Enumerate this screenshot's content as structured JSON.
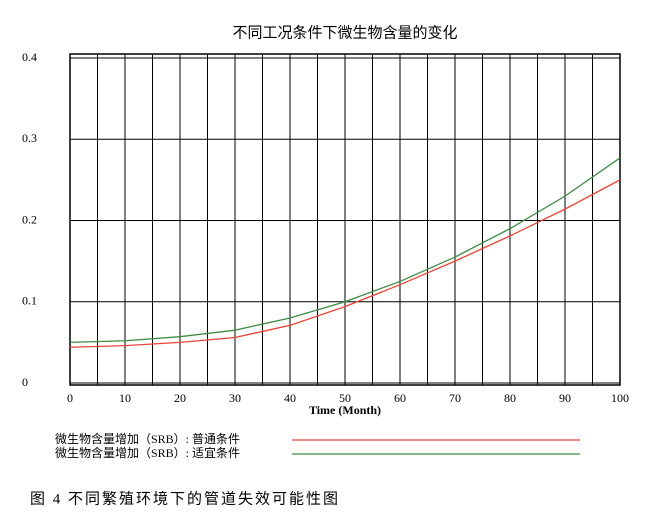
{
  "chart_data": {
    "type": "line",
    "title": "不同工况条件下微生物含量的变化",
    "x_label": "Time (Month)",
    "x": [
      0,
      10,
      20,
      30,
      40,
      50,
      60,
      70,
      80,
      90,
      100
    ],
    "series": [
      {
        "name": "微生物含量增加（SRB）: 普通条件",
        "color": "#e8463a",
        "values": [
          0.044,
          0.046,
          0.05,
          0.056,
          0.071,
          0.094,
          0.121,
          0.15,
          0.181,
          0.214,
          0.25
        ]
      },
      {
        "name": "微生物含量增加（SRB）: 适宜条件",
        "color": "#3f8a45",
        "values": [
          0.05,
          0.052,
          0.057,
          0.065,
          0.08,
          0.1,
          0.125,
          0.155,
          0.19,
          0.23,
          0.277
        ]
      }
    ],
    "xlim": [
      0,
      100
    ],
    "xticks": [
      0,
      10,
      20,
      30,
      40,
      50,
      60,
      70,
      80,
      90,
      100
    ],
    "xgrid": [
      0,
      5,
      10,
      15,
      20,
      25,
      30,
      35,
      40,
      45,
      50,
      55,
      60,
      65,
      70,
      75,
      80,
      85,
      90,
      95,
      100
    ],
    "ylim": [
      0,
      0.4
    ],
    "yticks": [
      0,
      0.1,
      0.2,
      0.3,
      0.4
    ],
    "grid": true,
    "caption": "图 4   不同繁殖环境下的管道失效可能性图"
  }
}
